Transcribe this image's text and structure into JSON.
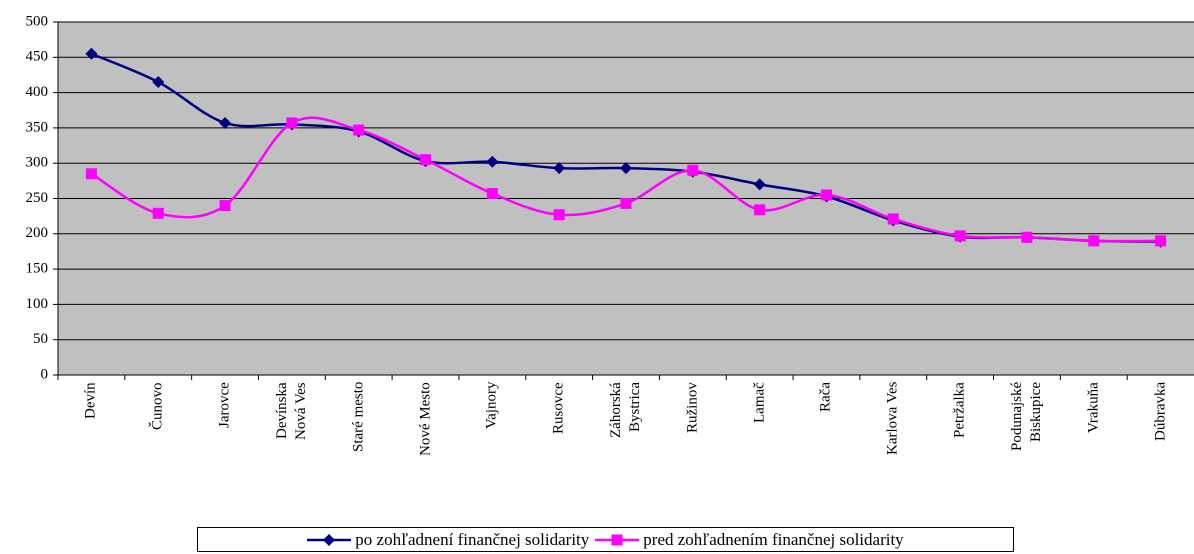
{
  "chart_data": {
    "type": "line",
    "categories": [
      "Devín",
      "Čunovo",
      "Jarovce",
      "Devínska\nNová Ves",
      "Staré mesto",
      "Nové Mesto",
      "Vajnory",
      "Rusovce",
      "Záhorská\nBystrica",
      "Ružinov",
      "Lamač",
      "Rača",
      "Karlova Ves",
      "Petržalka",
      "Podunajské\nBiskupice",
      "Vrakuňa",
      "Dúbravka"
    ],
    "series": [
      {
        "name": "po zohľadnení finančnej solidarity",
        "color": "#000080",
        "marker": "diamond",
        "values": [
          455,
          415,
          357,
          355,
          345,
          303,
          302,
          293,
          293,
          288,
          270,
          253,
          219,
          196,
          195,
          190,
          189
        ]
      },
      {
        "name": "pred zohľadnením finančnej solidarity",
        "color": "#ff00ff",
        "marker": "square",
        "values": [
          285,
          229,
          240,
          357,
          347,
          305,
          257,
          227,
          243,
          290,
          234,
          255,
          221,
          197,
          195,
          190,
          190
        ]
      }
    ],
    "ylim": [
      0,
      500
    ],
    "yticks": [
      0,
      50,
      100,
      150,
      200,
      250,
      300,
      350,
      400,
      450,
      500
    ],
    "grid": true,
    "legend": "bottom"
  }
}
